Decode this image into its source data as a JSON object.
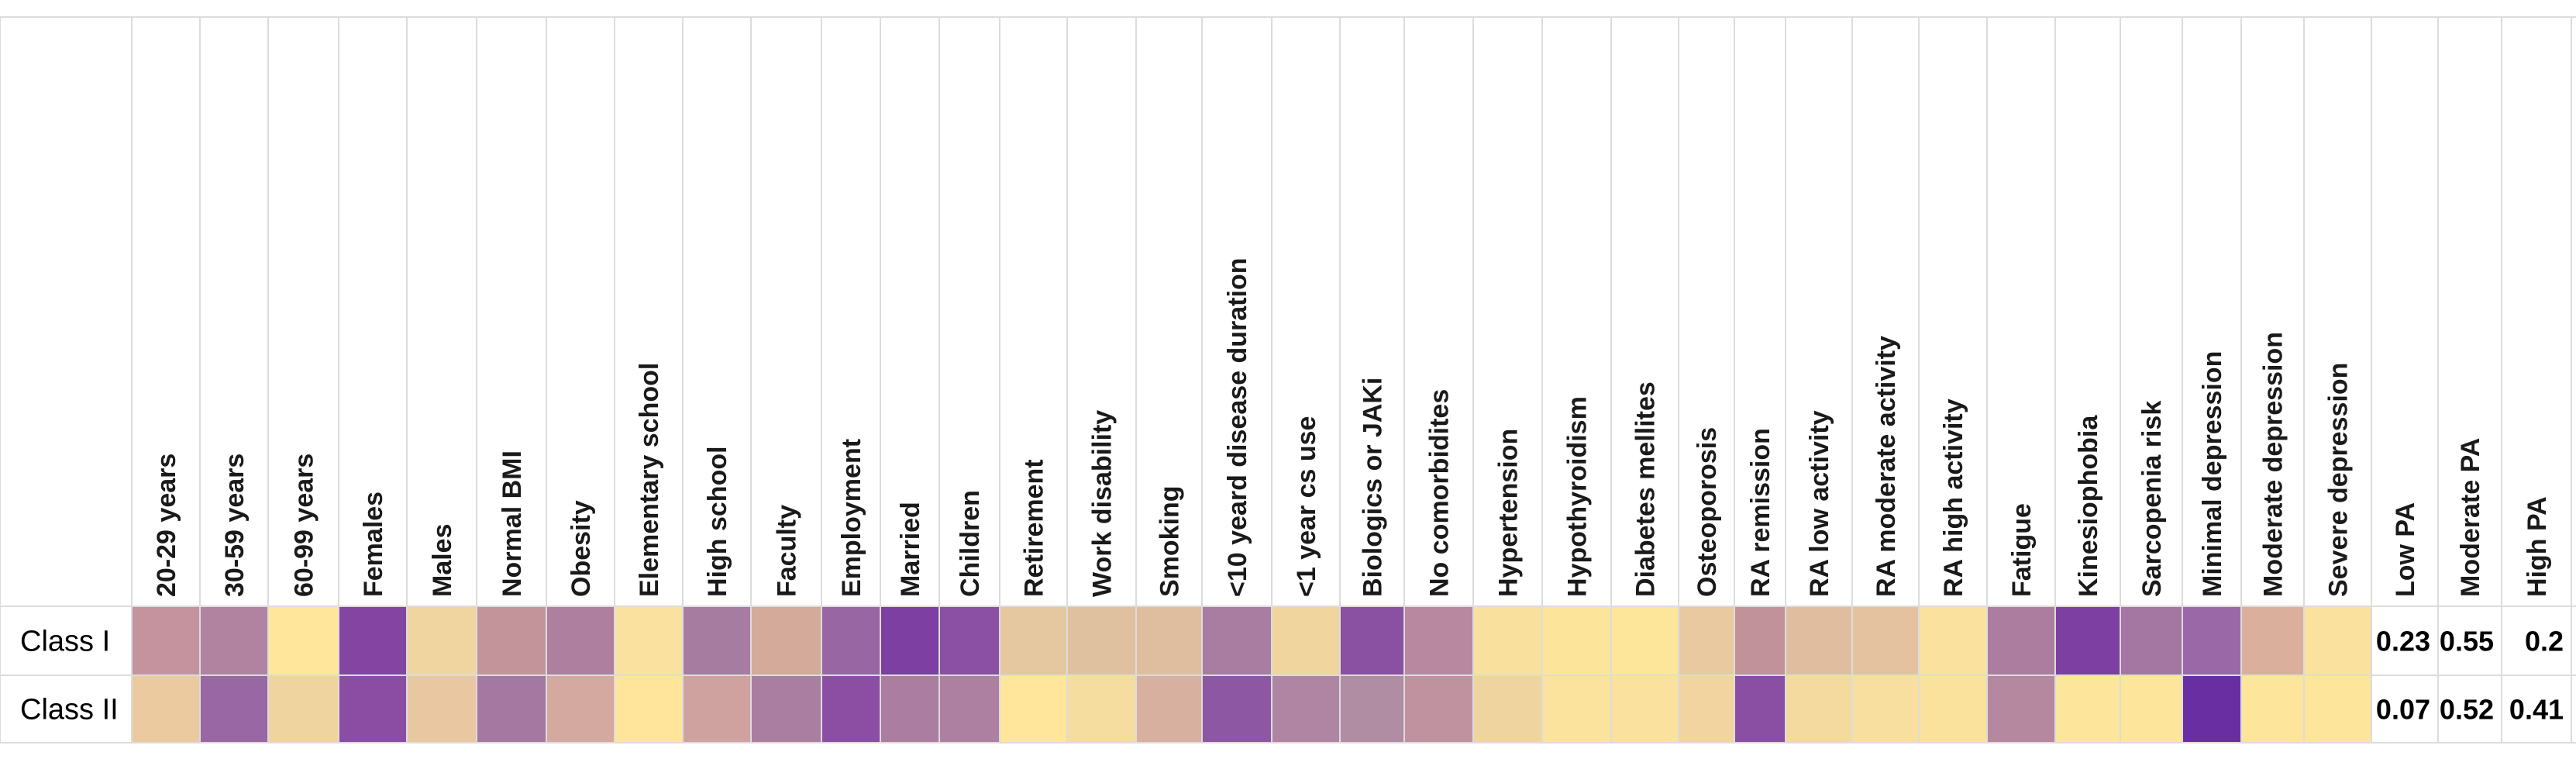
{
  "chart_data": {
    "type": "heatmap",
    "rows": [
      "Class I",
      "Class II"
    ],
    "columns": [
      "20-29 years",
      "30-59 years",
      "60-99 years",
      "Females",
      "Males",
      "Normal BMI",
      "Obesity",
      "Elementary school",
      "High school",
      "Faculty",
      "Employment",
      "Married",
      "Children",
      "Retirement",
      "Work disability",
      "Smoking",
      "<10 yeard disease duration",
      "<1 year cs use",
      "Biologics or JAKi",
      "No comorbidites",
      "Hypertension",
      "Hypothyroidism",
      "Diabetes mellites",
      "Osteoporosis",
      "RA remission",
      "RA low activity",
      "RA moderate activity",
      "RA high activity",
      "Fatigue",
      "Kinesiophobia",
      "Sarcopenia risk",
      "Minimal depression",
      "Moderate depression",
      "Severe depression",
      "Low PA",
      "Moderate PA",
      "High PA"
    ],
    "cell_colors": [
      [
        "#c4939d",
        "#b183a1",
        "#ffe69a",
        "#8445a2",
        "#f0d5a0",
        "#c4949b",
        "#ae7f9f",
        "#fbe1a0",
        "#a67ca1",
        "#d4aa9a",
        "#9866a3",
        "#7d3fa1",
        "#8b4fa3",
        "#e5c7a0",
        "#dfc1a0",
        "#dfbe9f",
        "#a97ca2",
        "#f0d59e",
        "#8a51a2",
        "#b788a0",
        "#f9e09d",
        "#fce59b",
        "#fde69a",
        "#e8c9a0",
        "#c19299",
        "#e1bd9f",
        "#e4c2a0",
        "#fae19d",
        "#ad7d9f",
        "#7d40a2",
        "#a477a3",
        "#9a68a6",
        "#dab09d",
        "#fae19d",
        "",
        "",
        ""
      ],
      [
        "#ebcaa0",
        "#9968a4",
        "#f0d4a0",
        "#8a4da3",
        "#e9c7a0",
        "#a478a1",
        "#d4aaa0",
        "#ffe59b",
        "#cfa2a0",
        "#aa7ea1",
        "#8b4ea3",
        "#aa7da1",
        "#ad80a1",
        "#ffe69a",
        "#f5dd9f",
        "#d7b0a0",
        "#8e57a3",
        "#b085a3",
        "#b08da3",
        "#c0929f",
        "#f0d4a0",
        "#fbe29d",
        "#fae19d",
        "#f2d4a0",
        "#8a4fa3",
        "#f5da9f",
        "#f9df9f",
        "#fbe29c",
        "#b5889f",
        "#fde59b",
        "#fde59b",
        "#6a2ea3",
        "#fde59b",
        "#fde59b",
        "",
        "",
        ""
      ]
    ],
    "pa_values": [
      [
        "0.23",
        "0.55",
        "0.2"
      ],
      [
        "0.07",
        "0.52",
        "0.41"
      ]
    ],
    "grid": true
  }
}
